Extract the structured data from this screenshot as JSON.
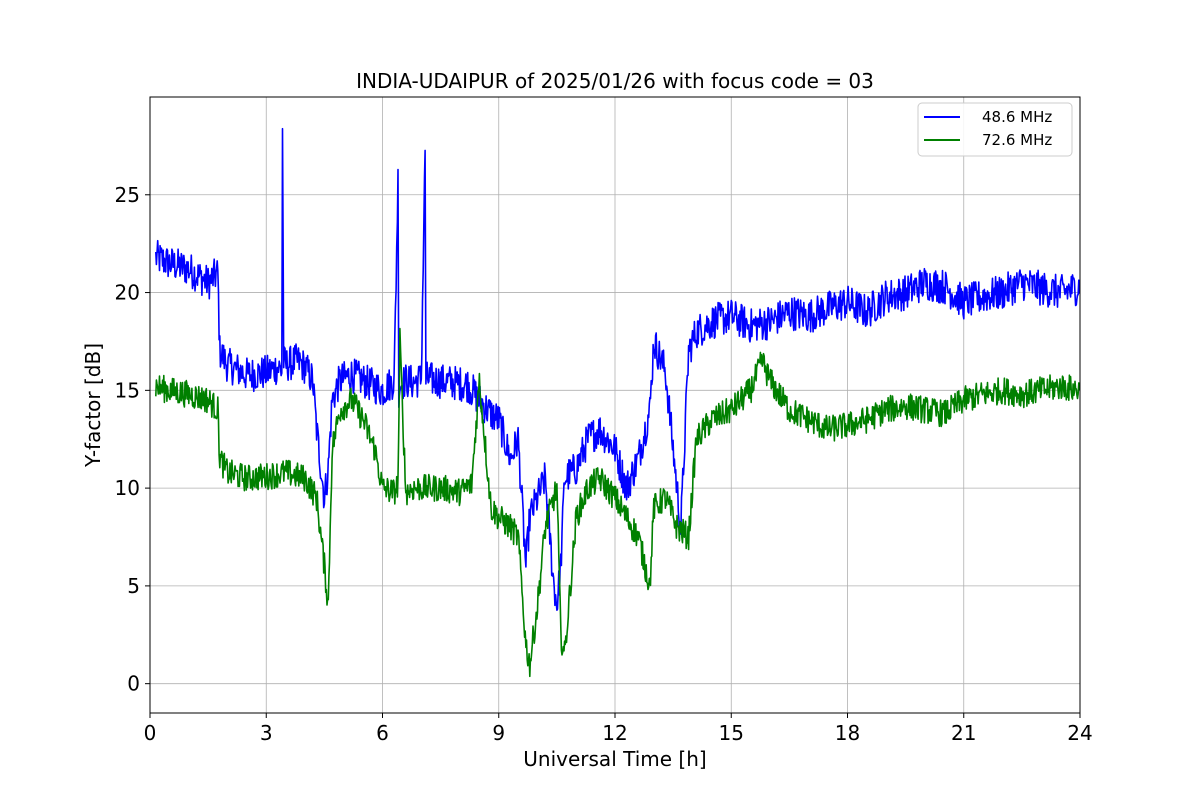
{
  "chart_data": {
    "type": "line",
    "title": "INDIA-UDAIPUR of 2025/01/26 with focus code = 03",
    "xlabel": "Universal Time [h]",
    "ylabel": "Y-factor [dB]",
    "xlim": [
      0,
      24
    ],
    "ylim": [
      -1.5,
      30
    ],
    "xticks": [
      0,
      3,
      6,
      9,
      12,
      15,
      18,
      21,
      24
    ],
    "yticks": [
      0,
      5,
      10,
      15,
      20,
      25
    ],
    "grid": true,
    "legend_position": "top-right",
    "series": [
      {
        "name": "48.6 MHz",
        "color": "#0000ff",
        "x": [
          0.15,
          0.5,
          1.0,
          1.5,
          1.75,
          1.8,
          2.0,
          2.5,
          3.0,
          3.3,
          3.4,
          3.42,
          3.45,
          3.5,
          3.8,
          4.0,
          4.2,
          4.3,
          4.5,
          4.6,
          4.7,
          4.9,
          5.2,
          5.5,
          5.8,
          6.0,
          6.3,
          6.4,
          6.42,
          6.45,
          6.6,
          6.8,
          7.0,
          7.1,
          7.12,
          7.15,
          7.4,
          7.8,
          8.2,
          8.5,
          8.8,
          9.0,
          9.3,
          9.5,
          9.7,
          9.8,
          10.0,
          10.2,
          10.4,
          10.5,
          10.6,
          10.7,
          11.0,
          11.3,
          11.6,
          12.0,
          12.3,
          12.6,
          12.9,
          13.0,
          13.3,
          13.5,
          13.7,
          13.9,
          14.1,
          14.5,
          15.0,
          15.5,
          16.0,
          16.5,
          17.0,
          17.5,
          18.0,
          18.5,
          19.0,
          19.5,
          20.0,
          20.5,
          21.0,
          21.5,
          22.0,
          22.5,
          23.0,
          23.5,
          24.0
        ],
        "values": [
          21.8,
          21.5,
          21.2,
          20.5,
          21.0,
          17.0,
          16.3,
          15.8,
          15.9,
          16.2,
          16.0,
          28.5,
          16.5,
          16.3,
          16.5,
          16.2,
          15.5,
          13.0,
          9.5,
          11.0,
          14.5,
          15.5,
          15.8,
          15.5,
          15.2,
          15.0,
          15.5,
          25.8,
          15.0,
          15.3,
          15.5,
          15.4,
          15.6,
          27.3,
          15.5,
          15.6,
          15.5,
          15.4,
          15.3,
          14.5,
          13.8,
          13.5,
          11.5,
          12.5,
          6.0,
          8.5,
          9.5,
          10.5,
          5.5,
          4.0,
          6.0,
          10.5,
          11.0,
          12.5,
          13.0,
          12.0,
          10.0,
          11.5,
          14.0,
          17.5,
          16.0,
          12.0,
          8.0,
          17.0,
          18.0,
          18.5,
          18.8,
          18.3,
          18.5,
          19.0,
          18.8,
          19.2,
          19.5,
          19.0,
          19.8,
          20.0,
          20.5,
          20.3,
          19.5,
          19.8,
          20.0,
          20.5,
          20.2,
          20.0,
          20.3
        ]
      },
      {
        "name": "72.6 MHz",
        "color": "#008000",
        "x": [
          0.15,
          0.5,
          1.0,
          1.5,
          1.75,
          1.8,
          2.0,
          2.5,
          3.0,
          3.5,
          4.0,
          4.3,
          4.5,
          4.6,
          4.7,
          4.9,
          5.2,
          5.5,
          5.8,
          6.0,
          6.3,
          6.4,
          6.45,
          6.6,
          6.8,
          7.0,
          7.5,
          8.0,
          8.3,
          8.5,
          8.8,
          9.0,
          9.3,
          9.5,
          9.7,
          9.8,
          10.0,
          10.2,
          10.5,
          10.6,
          10.7,
          11.0,
          11.3,
          11.6,
          12.0,
          12.3,
          12.6,
          12.9,
          13.0,
          13.3,
          13.6,
          13.9,
          14.1,
          14.5,
          15.0,
          15.5,
          15.8,
          16.0,
          16.5,
          17.0,
          17.5,
          18.0,
          18.5,
          19.0,
          19.5,
          20.0,
          20.5,
          21.0,
          21.5,
          22.0,
          22.5,
          23.0,
          23.5,
          24.0
        ],
        "values": [
          15.2,
          15.0,
          14.8,
          14.5,
          14.0,
          11.5,
          10.8,
          10.5,
          10.6,
          10.8,
          10.5,
          9.5,
          6.0,
          4.0,
          12.0,
          14.0,
          14.5,
          13.5,
          12.0,
          10.0,
          9.8,
          10.2,
          17.5,
          9.8,
          10.0,
          10.0,
          10.0,
          9.8,
          10.2,
          15.5,
          9.0,
          8.5,
          8.0,
          7.5,
          2.0,
          1.0,
          4.0,
          8.0,
          10.0,
          2.5,
          1.5,
          8.5,
          10.0,
          10.5,
          9.5,
          8.5,
          7.5,
          5.0,
          9.0,
          9.5,
          8.0,
          7.5,
          12.5,
          13.5,
          14.0,
          15.0,
          16.5,
          15.5,
          14.0,
          13.5,
          13.0,
          13.2,
          13.5,
          14.0,
          14.2,
          14.0,
          13.8,
          14.5,
          14.8,
          15.0,
          14.8,
          15.0,
          15.2,
          15.0
        ]
      }
    ]
  }
}
